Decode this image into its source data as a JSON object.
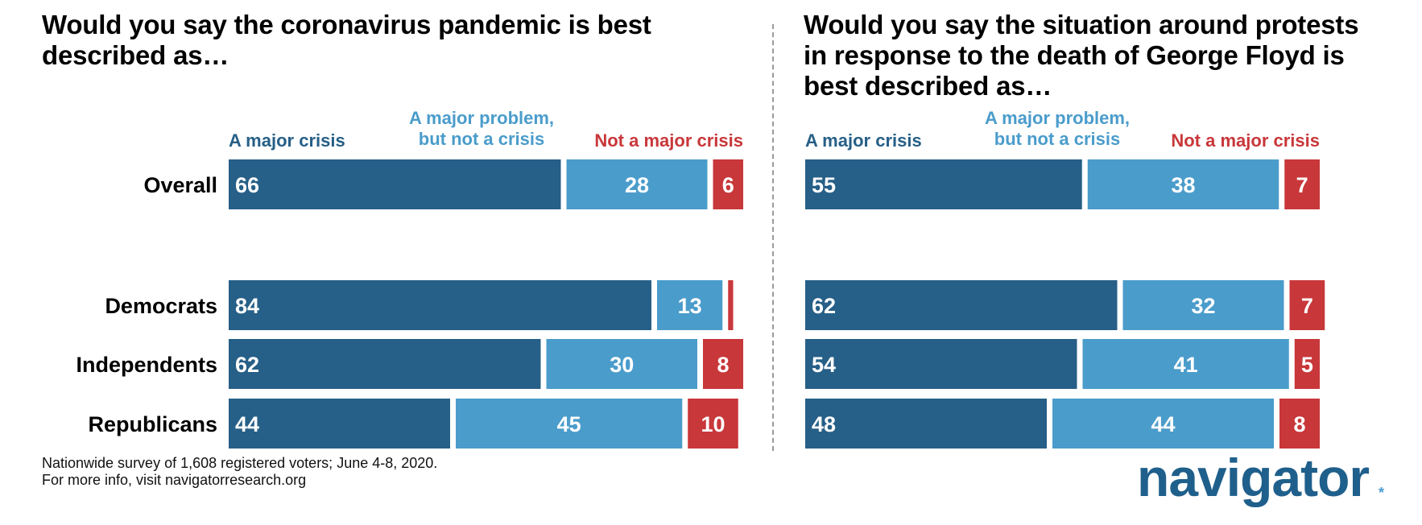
{
  "colors": {
    "major_crisis": "#265f87",
    "major_problem": "#4a9ccb",
    "not_major": "#c8373a",
    "header_major_crisis": "#265f87",
    "header_major_problem": "#4a9ccb",
    "header_not_major": "#c8373a"
  },
  "footnote": {
    "line1": "Nationwide survey of 1,608 registered voters; June 4-8, 2020.",
    "line2": "For more info, visit navigatorresearch.org"
  },
  "logo": {
    "text": "navigator",
    "star": "*"
  },
  "chart_data": [
    {
      "type": "bar",
      "stacked": true,
      "orientation": "horizontal",
      "title": "Would you say the coronavirus pandemic is best described as…",
      "categories": [
        "Overall",
        "Democrats",
        "Independents",
        "Republicans"
      ],
      "series": [
        {
          "name": "A major crisis",
          "values": [
            66,
            84,
            62,
            44
          ]
        },
        {
          "name": "A major problem, but not a crisis",
          "values": [
            28,
            13,
            30,
            45
          ]
        },
        {
          "name": "Not a major crisis",
          "values": [
            6,
            1,
            8,
            10
          ]
        }
      ],
      "data_labels": [
        [
          "66",
          "84",
          "62",
          "44"
        ],
        [
          "28",
          "13",
          "30",
          "45"
        ],
        [
          "6",
          "",
          "8",
          "10"
        ]
      ],
      "legend_placement": "top",
      "xlim": [
        0,
        100
      ]
    },
    {
      "type": "bar",
      "stacked": true,
      "orientation": "horizontal",
      "title": "Would you say the situation around protests in response to the death of George Floyd is best described as…",
      "categories": [
        "Overall",
        "Democrats",
        "Independents",
        "Republicans"
      ],
      "series": [
        {
          "name": "A major crisis",
          "values": [
            55,
            62,
            54,
            48
          ]
        },
        {
          "name": "A major problem, but not a crisis",
          "values": [
            38,
            32,
            41,
            44
          ]
        },
        {
          "name": "Not a major crisis",
          "values": [
            7,
            7,
            5,
            8
          ]
        }
      ],
      "data_labels": [
        [
          "55",
          "62",
          "54",
          "48"
        ],
        [
          "38",
          "32",
          "41",
          "44"
        ],
        [
          "7",
          "7",
          "5",
          "8"
        ]
      ],
      "legend_placement": "top",
      "xlim": [
        0,
        100
      ]
    }
  ]
}
